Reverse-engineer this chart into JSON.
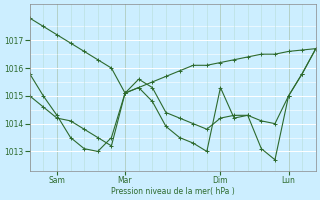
{
  "title": "",
  "xlabel": "Pression niveau de la mer( hPa )",
  "ylabel": "",
  "bg_color": "#cceeff",
  "grid_color": "#aaddcc",
  "line_color": "#2d6a2d",
  "marker_color": "#2d6a2d",
  "ylim": [
    1012.3,
    1018.3
  ],
  "yticks": [
    1013,
    1014,
    1015,
    1016,
    1017
  ],
  "xtick_labels": [
    "Sam",
    "Mar",
    "Dim",
    "Lun"
  ],
  "xtick_positions": [
    8,
    28,
    56,
    76
  ],
  "total_points": 84,
  "series": [
    {
      "x": [
        0,
        4,
        8,
        12,
        16,
        20,
        24,
        28,
        32,
        36,
        40,
        44,
        48,
        52,
        56,
        60,
        64,
        68,
        72,
        76,
        80,
        84
      ],
      "y": [
        1017.8,
        1017.5,
        1017.2,
        1016.9,
        1016.6,
        1016.3,
        1016.0,
        1015.1,
        1015.3,
        1015.5,
        1015.7,
        1015.9,
        1016.1,
        1016.1,
        1016.2,
        1016.3,
        1016.4,
        1016.5,
        1016.5,
        1016.6,
        1016.65,
        1016.7
      ]
    },
    {
      "x": [
        0,
        4,
        8,
        12,
        16,
        20,
        24,
        28,
        32,
        36,
        40,
        44,
        48,
        52,
        56,
        60,
        64,
        68,
        72,
        76,
        80,
        84
      ],
      "y": [
        1015.8,
        1015.0,
        1014.3,
        1013.5,
        1013.1,
        1013.0,
        1013.5,
        1015.1,
        1015.3,
        1014.8,
        1013.9,
        1013.5,
        1013.3,
        1013.0,
        1015.3,
        1014.2,
        1014.3,
        1013.1,
        1012.7,
        1015.0,
        1015.8,
        1016.7
      ]
    },
    {
      "x": [
        0,
        4,
        8,
        12,
        16,
        20,
        24,
        28,
        32,
        36,
        40,
        44,
        48,
        52,
        56,
        60,
        64,
        68,
        72,
        76,
        80,
        84
      ],
      "y": [
        1015.0,
        1014.6,
        1014.2,
        1014.1,
        1013.8,
        1013.5,
        1013.2,
        1015.1,
        1015.6,
        1015.3,
        1014.4,
        1014.2,
        1014.0,
        1013.8,
        1014.2,
        1014.3,
        1014.3,
        1014.1,
        1014.0,
        1015.0,
        1015.8,
        1016.7
      ]
    }
  ]
}
